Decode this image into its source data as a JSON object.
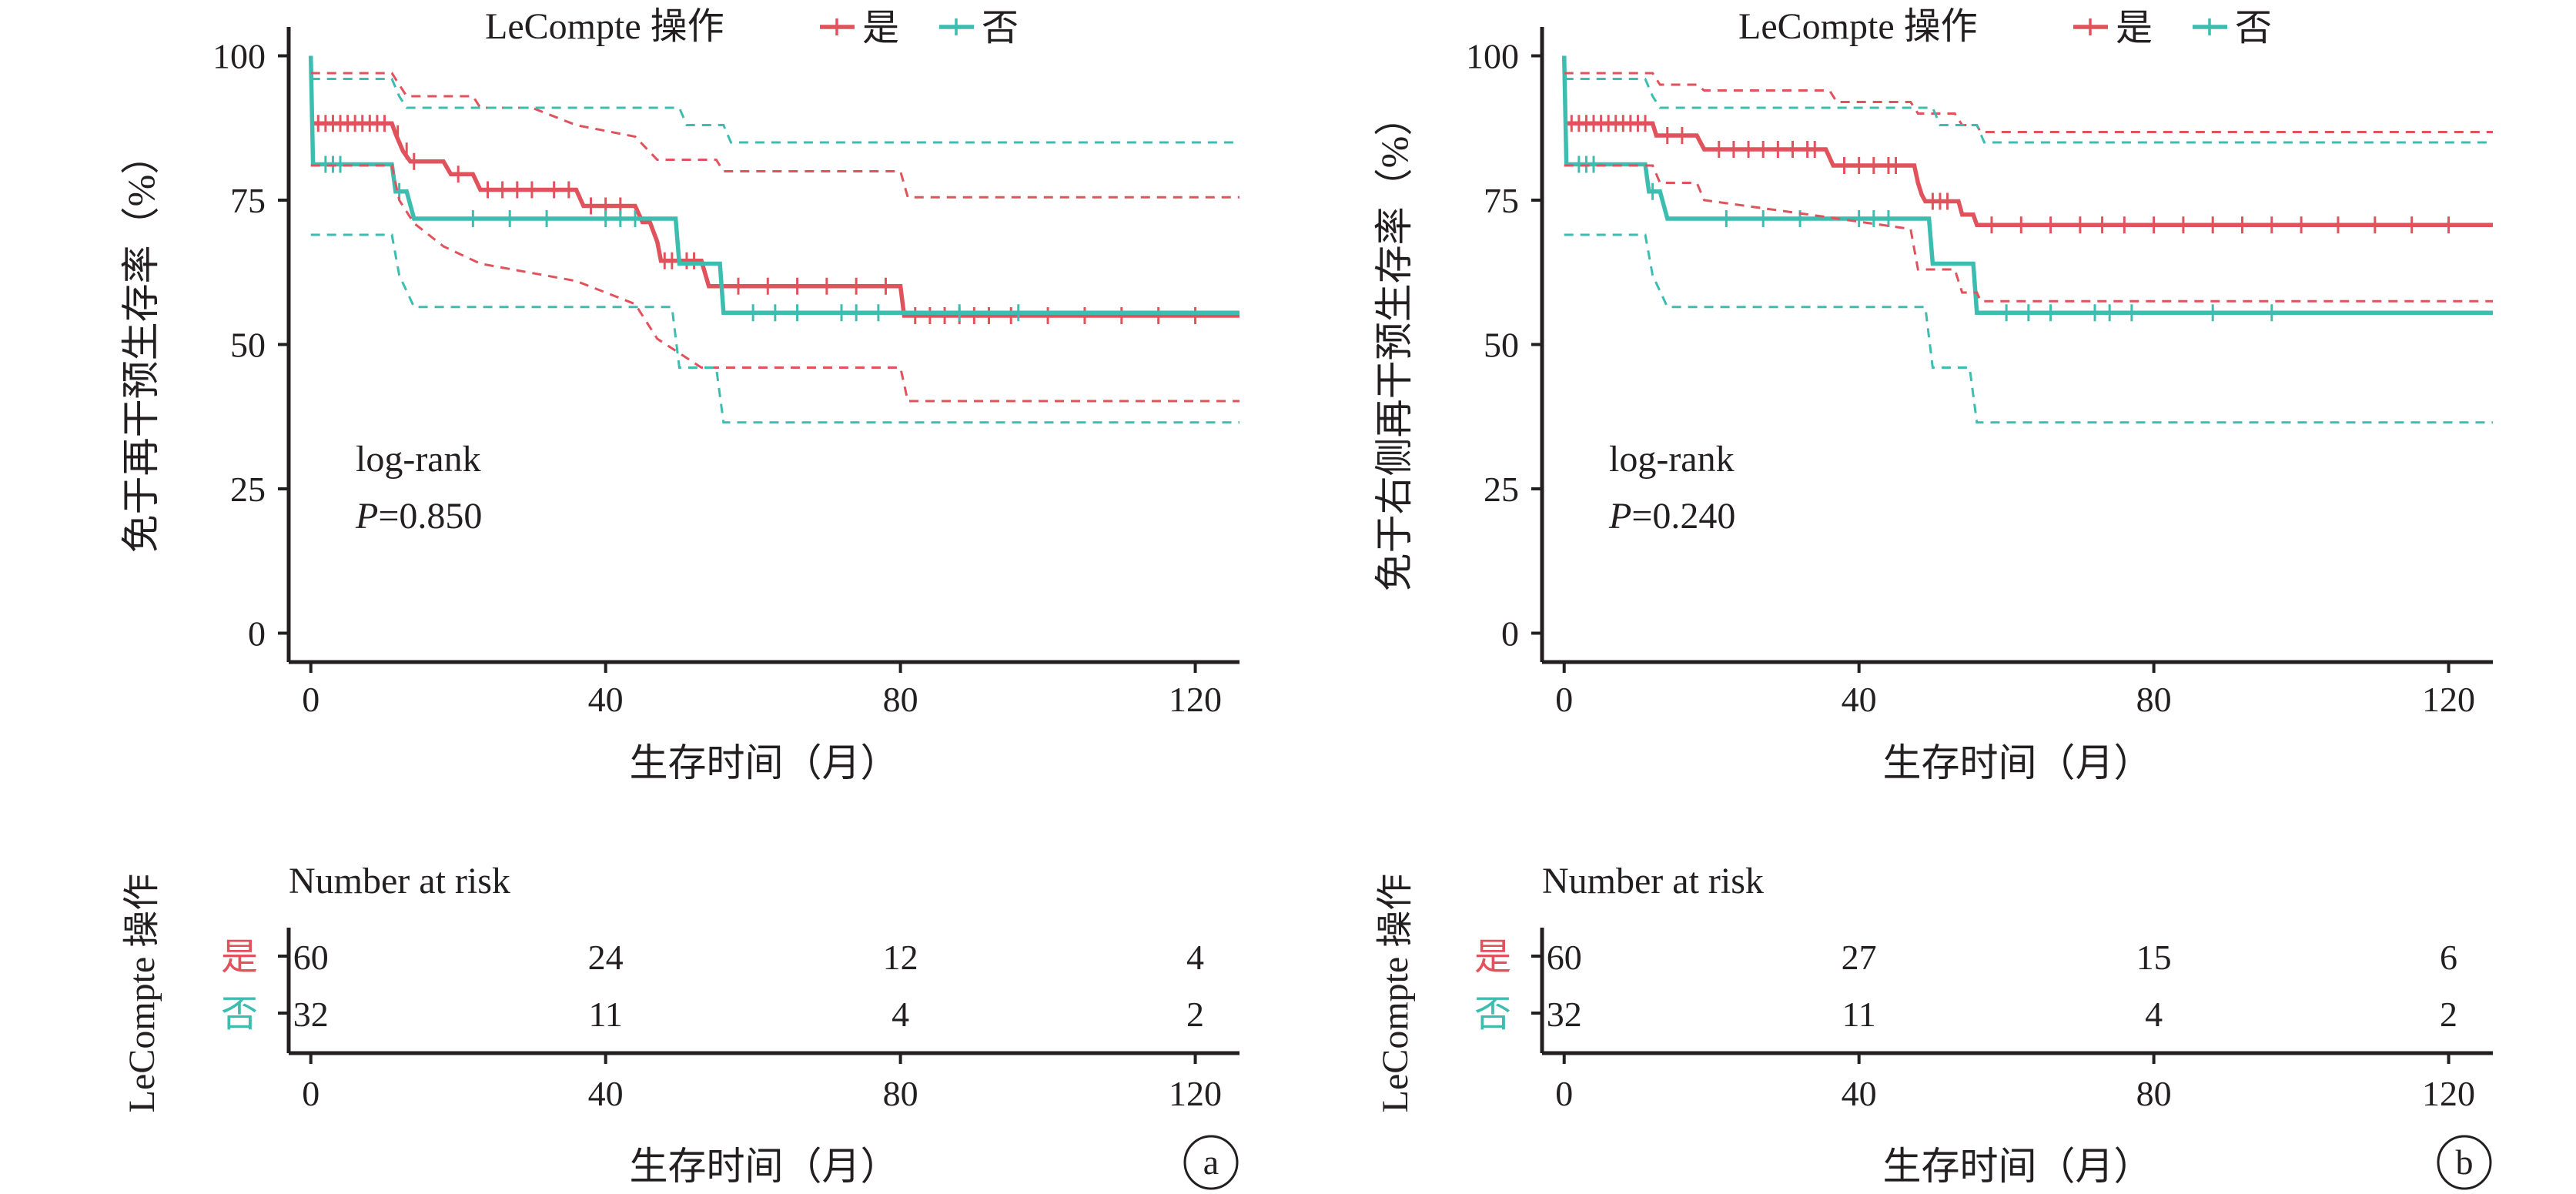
{
  "colors": {
    "yes": "#e0525c",
    "no": "#3dbdb0",
    "axis": "#231f20"
  },
  "charts": [
    {
      "panel_label": "a",
      "ylabel": "免于再干预生存率（%）",
      "test_name": "log-rank",
      "p_symbol": "P",
      "p_value": "=0.850"
    },
    {
      "panel_label": "b",
      "ylabel": "免于右侧再干预生存率（%）",
      "test_name": "log-rank",
      "p_symbol": "P",
      "p_value": "=0.240"
    }
  ],
  "chart_data": [
    {
      "type": "line",
      "title": "",
      "xlabel": "生存时间（月）",
      "ylabel": "免于再干预生存率（%）",
      "xlim": [
        -3,
        126
      ],
      "ylim": [
        -5,
        105
      ],
      "xticks": [
        0,
        40,
        80,
        120
      ],
      "yticks": [
        0,
        25,
        50,
        75,
        100
      ],
      "grid": false,
      "legend": {
        "title": "LeCompte 操作",
        "placement": "top-center",
        "entries": [
          "是",
          "否"
        ]
      },
      "series": [
        {
          "name": "是",
          "color_key": "yes",
          "style": "step",
          "points": [
            [
              0,
              88.3
            ],
            [
              11,
              88.3
            ],
            [
              11.5,
              86.5
            ],
            [
              12,
              85
            ],
            [
              12.5,
              83.5
            ],
            [
              13.5,
              81.7
            ],
            [
              18,
              81.7
            ],
            [
              19,
              79.5
            ],
            [
              22,
              79.5
            ],
            [
              23,
              76.8
            ],
            [
              36,
              76.8
            ],
            [
              37,
              74
            ],
            [
              44,
              74
            ],
            [
              45,
              71.2
            ],
            [
              46,
              71.2
            ],
            [
              47,
              67.8
            ],
            [
              47.5,
              64.5
            ],
            [
              53,
              64.5
            ],
            [
              54,
              60.1
            ],
            [
              80,
              60.1
            ],
            [
              80.5,
              55
            ],
            [
              126,
              55
            ]
          ],
          "censor_x": [
            1,
            2,
            3,
            4,
            5,
            6,
            7,
            8,
            9,
            10,
            11.8,
            13,
            14,
            20,
            24,
            26,
            28,
            30,
            33,
            35,
            38,
            40,
            42,
            48,
            49,
            51,
            52,
            58,
            62,
            66,
            70,
            74,
            78,
            82,
            84,
            86,
            88,
            90,
            92,
            95,
            100,
            105,
            110,
            115,
            120
          ]
        },
        {
          "name": "否",
          "color_key": "no",
          "style": "step",
          "points": [
            [
              0,
              100
            ],
            [
              0.3,
              81.2
            ],
            [
              11,
              81.2
            ],
            [
              11.5,
              76.5
            ],
            [
              13,
              76.5
            ],
            [
              14,
              71.8
            ],
            [
              49.5,
              71.8
            ],
            [
              50,
              64
            ],
            [
              55.5,
              64
            ],
            [
              56,
              55.5
            ],
            [
              126,
              55.5
            ]
          ],
          "censor_x": [
            2,
            3,
            4,
            12,
            22,
            27,
            32,
            40,
            42,
            44,
            60,
            63,
            66,
            72,
            74,
            77,
            88,
            96
          ]
        },
        {
          "name": "",
          "color_key": "yes",
          "style": "dashed-step",
          "points": [
            [
              0,
              97
            ],
            [
              11,
              97
            ],
            [
              12,
              95
            ],
            [
              13,
              93
            ],
            [
              22,
              93
            ],
            [
              23,
              91
            ],
            [
              30,
              91
            ],
            [
              36,
              88
            ],
            [
              44,
              86
            ],
            [
              47,
              82
            ],
            [
              55,
              82
            ],
            [
              56,
              80
            ],
            [
              80,
              80
            ],
            [
              81,
              75.5
            ],
            [
              126,
              75.5
            ]
          ]
        },
        {
          "name": "",
          "color_key": "yes",
          "style": "dashed-step",
          "points": [
            [
              0,
              81
            ],
            [
              11,
              81
            ],
            [
              12,
              75
            ],
            [
              14,
              71
            ],
            [
              18,
              67
            ],
            [
              23,
              64
            ],
            [
              36,
              61
            ],
            [
              44,
              57
            ],
            [
              47,
              51
            ],
            [
              53,
              46
            ],
            [
              80,
              46
            ],
            [
              81,
              40.2
            ],
            [
              126,
              40.2
            ]
          ]
        },
        {
          "name": "",
          "color_key": "no",
          "style": "dashed-step",
          "points": [
            [
              0,
              96
            ],
            [
              11,
              96
            ],
            [
              12,
              93
            ],
            [
              13,
              91
            ],
            [
              50,
              91
            ],
            [
              51,
              88
            ],
            [
              56,
              88
            ],
            [
              57,
              85
            ],
            [
              126,
              85
            ]
          ]
        },
        {
          "name": "",
          "color_key": "no",
          "style": "dashed-step",
          "points": [
            [
              0,
              69
            ],
            [
              11,
              69
            ],
            [
              12,
              62
            ],
            [
              14,
              56.5
            ],
            [
              49,
              56.5
            ],
            [
              50,
              46
            ],
            [
              55,
              46
            ],
            [
              56,
              36.5
            ],
            [
              126,
              36.5
            ]
          ]
        }
      ],
      "risk_table": {
        "header": "Number at risk",
        "ylabel": "LeCompte 操作",
        "rows": [
          {
            "group": "是",
            "color_key": "yes",
            "x": [
              0,
              40,
              80,
              120
            ],
            "values": [
              "60",
              "24",
              "12",
              "4"
            ]
          },
          {
            "group": "否",
            "color_key": "no",
            "x": [
              0,
              40,
              80,
              120
            ],
            "values": [
              "32",
              "11",
              "4",
              "2"
            ]
          }
        ],
        "xticks": [
          0,
          40,
          80,
          120
        ],
        "xlabel": "生存时间（月）"
      }
    },
    {
      "type": "line",
      "title": "",
      "xlabel": "生存时间（月）",
      "ylabel": "免于右侧再干预生存率（%）",
      "xlim": [
        -3,
        126
      ],
      "ylim": [
        -5,
        105
      ],
      "xticks": [
        0,
        40,
        80,
        120
      ],
      "yticks": [
        0,
        25,
        50,
        75,
        100
      ],
      "grid": false,
      "legend": {
        "title": "LeCompte 操作",
        "placement": "top-center",
        "entries": [
          "是",
          "否"
        ]
      },
      "series": [
        {
          "name": "是",
          "color_key": "yes",
          "style": "step",
          "points": [
            [
              0,
              88.3
            ],
            [
              12,
              88.3
            ],
            [
              12.5,
              86.2
            ],
            [
              18,
              86.2
            ],
            [
              19,
              83.8
            ],
            [
              35.5,
              83.8
            ],
            [
              36.5,
              81
            ],
            [
              47.5,
              81
            ],
            [
              48,
              78
            ],
            [
              48.5,
              76
            ],
            [
              49,
              74.8
            ],
            [
              53.5,
              74.8
            ],
            [
              54,
              72.5
            ],
            [
              55.5,
              72.5
            ],
            [
              56,
              70.7
            ],
            [
              126,
              70.7
            ]
          ],
          "censor_x": [
            1,
            2,
            3,
            4,
            5,
            6,
            7,
            8,
            9,
            10,
            11,
            14,
            16,
            21,
            23,
            25,
            27,
            29,
            31,
            33,
            34,
            38,
            40,
            42,
            44,
            45,
            50,
            51,
            52,
            58,
            62,
            66,
            70,
            73,
            76,
            80,
            84,
            88,
            92,
            96,
            100,
            105,
            110,
            115,
            120
          ]
        },
        {
          "name": "否",
          "color_key": "no",
          "style": "step",
          "points": [
            [
              0,
              100
            ],
            [
              0.3,
              81.2
            ],
            [
              11,
              81.2
            ],
            [
              11.5,
              76.5
            ],
            [
              13,
              76.5
            ],
            [
              14,
              71.8
            ],
            [
              49.5,
              71.8
            ],
            [
              50,
              64
            ],
            [
              55.5,
              64
            ],
            [
              56,
              55.5
            ],
            [
              126,
              55.5
            ]
          ],
          "censor_x": [
            2,
            3,
            4,
            12,
            22,
            27,
            32,
            40,
            42,
            44,
            60,
            63,
            66,
            72,
            74,
            77,
            88,
            96
          ]
        },
        {
          "name": "",
          "color_key": "yes",
          "style": "dashed-step",
          "points": [
            [
              0,
              97
            ],
            [
              12,
              97
            ],
            [
              13,
              95
            ],
            [
              18,
              95
            ],
            [
              19,
              94
            ],
            [
              36,
              94
            ],
            [
              37,
              92
            ],
            [
              47,
              92
            ],
            [
              48,
              90
            ],
            [
              53,
              90
            ],
            [
              54,
              88
            ],
            [
              56,
              88
            ],
            [
              56.5,
              86.8
            ],
            [
              126,
              86.8
            ]
          ]
        },
        {
          "name": "",
          "color_key": "yes",
          "style": "dashed-step",
          "points": [
            [
              0,
              81
            ],
            [
              12,
              81
            ],
            [
              13,
              78
            ],
            [
              18,
              78
            ],
            [
              19,
              75
            ],
            [
              36,
              72
            ],
            [
              47,
              70
            ],
            [
              48,
              63
            ],
            [
              53,
              63
            ],
            [
              54,
              59
            ],
            [
              56,
              59
            ],
            [
              56.5,
              57.5
            ],
            [
              126,
              57.5
            ]
          ]
        },
        {
          "name": "",
          "color_key": "no",
          "style": "dashed-step",
          "points": [
            [
              0,
              96
            ],
            [
              11,
              96
            ],
            [
              12,
              93
            ],
            [
              13,
              91
            ],
            [
              50,
              91
            ],
            [
              51,
              88
            ],
            [
              56,
              88
            ],
            [
              57,
              85
            ],
            [
              126,
              85
            ]
          ]
        },
        {
          "name": "",
          "color_key": "no",
          "style": "dashed-step",
          "points": [
            [
              0,
              69
            ],
            [
              11,
              69
            ],
            [
              12,
              62
            ],
            [
              14,
              56.5
            ],
            [
              49,
              56.5
            ],
            [
              50,
              46
            ],
            [
              55,
              46
            ],
            [
              56,
              36.5
            ],
            [
              126,
              36.5
            ]
          ]
        }
      ],
      "risk_table": {
        "header": "Number at risk",
        "ylabel": "LeCompte 操作",
        "rows": [
          {
            "group": "是",
            "color_key": "yes",
            "x": [
              0,
              40,
              80,
              120
            ],
            "values": [
              "60",
              "27",
              "15",
              "6"
            ]
          },
          {
            "group": "否",
            "color_key": "no",
            "x": [
              0,
              40,
              80,
              120
            ],
            "values": [
              "32",
              "11",
              "4",
              "2"
            ]
          }
        ],
        "xticks": [
          0,
          40,
          80,
          120
        ],
        "xlabel": "生存时间（月）"
      }
    }
  ]
}
